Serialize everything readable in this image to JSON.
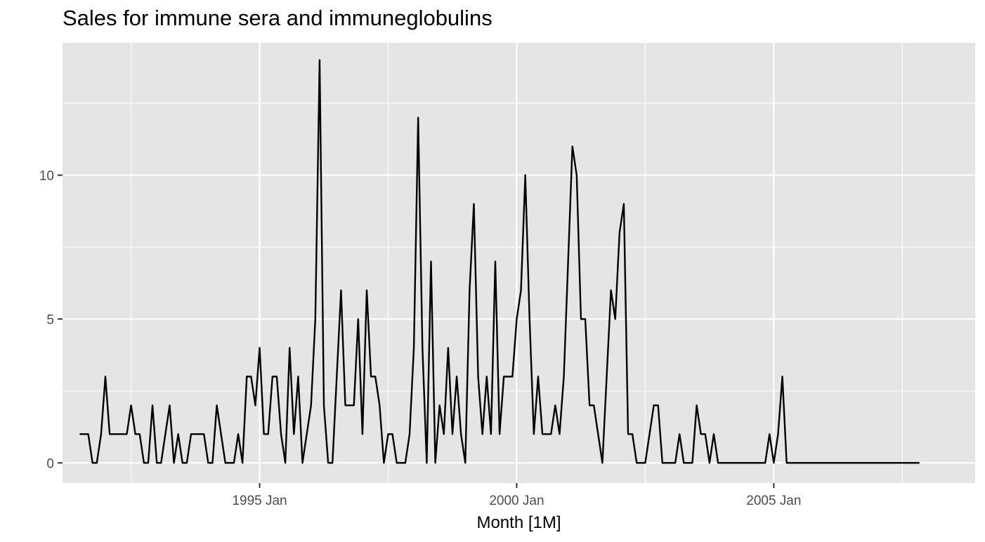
{
  "chart_data": {
    "type": "line",
    "title": "Sales for immune sera and immuneglobulins",
    "xlabel": "Month [1M]",
    "ylabel": "",
    "x_start": "1991 Jul",
    "x_frequency": "monthly",
    "xlim": [
      "1991 Mar",
      "2008 Dec"
    ],
    "ylim": [
      -0.7,
      14.6
    ],
    "x_ticks": [
      {
        "label": "1995 Jan",
        "date": "1995 Jan"
      },
      {
        "label": "2000 Jan",
        "date": "2000 Jan"
      },
      {
        "label": "2005 Jan",
        "date": "2005 Jan"
      }
    ],
    "x_minor_ticks": [
      "1992 Jul",
      "1997 Jul",
      "2002 Jul",
      "2007 Jul"
    ],
    "y_ticks": [
      0,
      5,
      10
    ],
    "y_minor_ticks": [
      2.5,
      7.5,
      12.5
    ],
    "grid": true,
    "legend": "none",
    "line_color": "#000000",
    "panel_color": "#e5e5e5",
    "grid_color": "#ffffff",
    "series": [
      {
        "values": [
          1,
          1,
          1,
          0,
          0,
          1,
          3,
          1,
          1,
          1,
          1,
          1,
          2,
          1,
          1,
          0,
          0,
          2,
          0,
          0,
          1,
          2,
          0,
          1,
          0,
          0,
          1,
          1,
          1,
          1,
          0,
          0,
          2,
          1,
          0,
          0,
          0,
          1,
          0,
          3,
          3,
          2,
          4,
          1,
          1,
          3,
          3,
          1,
          0,
          4,
          1,
          3,
          0,
          1,
          2,
          5,
          14,
          2,
          0,
          0,
          3,
          6,
          2,
          2,
          2,
          5,
          1,
          6,
          3,
          3,
          2,
          0,
          1,
          1,
          0,
          0,
          0,
          1,
          4,
          12,
          4,
          0,
          7,
          0,
          2,
          1,
          4,
          1,
          3,
          1,
          0,
          6,
          9,
          3,
          1,
          3,
          1,
          7,
          1,
          3,
          3,
          3,
          5,
          6,
          10,
          5,
          1,
          3,
          1,
          1,
          1,
          2,
          1,
          3,
          7,
          11,
          10,
          5,
          5,
          2,
          2,
          1,
          0,
          3,
          6,
          5,
          8,
          9,
          1,
          1,
          0,
          0,
          0,
          1,
          2,
          2,
          0,
          0,
          0,
          0,
          1,
          0,
          0,
          0,
          2,
          1,
          1,
          0,
          1,
          0,
          0,
          0,
          0,
          0,
          0,
          0,
          0,
          0,
          0,
          0,
          0,
          1,
          0,
          1,
          3,
          0,
          0,
          0,
          0,
          0,
          0,
          0,
          0,
          0,
          0,
          0,
          0,
          0,
          0,
          0,
          0,
          0,
          0,
          0,
          0,
          0,
          0,
          0,
          0,
          0,
          0,
          0,
          0,
          0,
          0,
          0,
          0
        ]
      }
    ]
  }
}
